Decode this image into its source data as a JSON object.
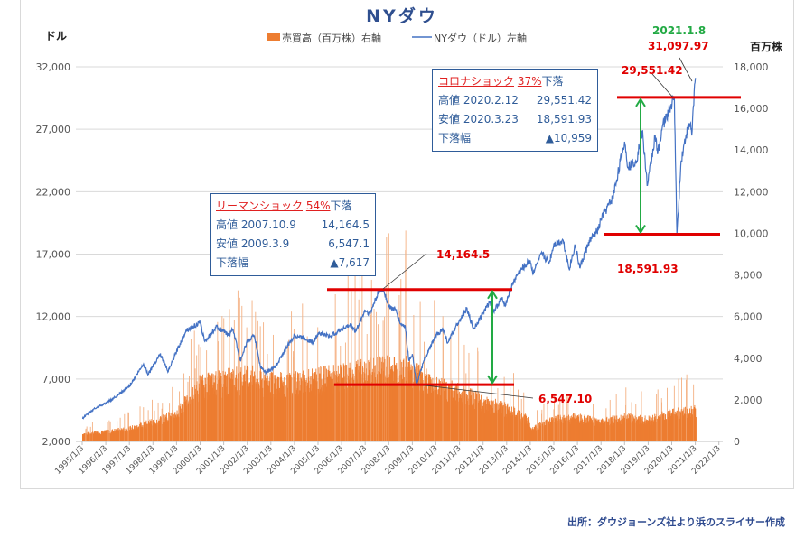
{
  "chart_data": {
    "type": "line+bar",
    "title": "NYダウ",
    "left_axis_unit": "ドル",
    "right_axis_unit": "百万株",
    "legend": [
      {
        "label": "売買高（百万株）右軸",
        "color": "#ed7d31",
        "kind": "bar"
      },
      {
        "label": "NYダウ（ドル）左軸",
        "color": "#4472c4",
        "kind": "line"
      }
    ],
    "legend_position": "top",
    "grid": true,
    "left_ylim": [
      2000,
      32000
    ],
    "left_ticks": [
      "2,000",
      "7,000",
      "12,000",
      "17,000",
      "22,000",
      "27,000",
      "32,000"
    ],
    "right_ylim": [
      0,
      18000
    ],
    "right_ticks": [
      "0",
      "2,000",
      "4,000",
      "6,000",
      "8,000",
      "10,000",
      "12,000",
      "14,000",
      "16,000",
      "18,000"
    ],
    "x_ticks": [
      "1995/1/3",
      "1996/1/3",
      "1997/1/3",
      "1998/1/3",
      "1999/1/3",
      "2000/1/3",
      "2001/1/3",
      "2002/1/3",
      "2003/1/3",
      "2004/1/3",
      "2005/1/3",
      "2006/1/3",
      "2007/1/3",
      "2008/1/3",
      "2009/1/3",
      "2010/1/3",
      "2011/1/3",
      "2012/1/3",
      "2013/1/3",
      "2014/1/3",
      "2015/1/3",
      "2016/1/3",
      "2017/1/3",
      "2018/1/3",
      "2019/1/3",
      "2020/1/3",
      "2021/1/3",
      "2022/1/3"
    ],
    "dow_series": [
      [
        1995.0,
        3840
      ],
      [
        1995.5,
        4600
      ],
      [
        1996.0,
        5100
      ],
      [
        1996.5,
        5650
      ],
      [
        1997.0,
        6450
      ],
      [
        1997.6,
        8200
      ],
      [
        1997.8,
        7400
      ],
      [
        1998.3,
        9000
      ],
      [
        1998.65,
        7600
      ],
      [
        1999.0,
        9200
      ],
      [
        1999.4,
        10900
      ],
      [
        2000.0,
        11500
      ],
      [
        2000.2,
        10000
      ],
      [
        2000.7,
        11200
      ],
      [
        2001.2,
        10500
      ],
      [
        2001.4,
        11000
      ],
      [
        2001.7,
        8500
      ],
      [
        2002.0,
        10000
      ],
      [
        2002.3,
        10500
      ],
      [
        2002.55,
        8000
      ],
      [
        2002.8,
        7500
      ],
      [
        2003.2,
        8000
      ],
      [
        2003.6,
        9300
      ],
      [
        2004.0,
        10500
      ],
      [
        2004.4,
        10300
      ],
      [
        2004.8,
        9900
      ],
      [
        2005.0,
        10700
      ],
      [
        2005.5,
        10400
      ],
      [
        2006.0,
        11000
      ],
      [
        2006.4,
        11300
      ],
      [
        2006.6,
        10800
      ],
      [
        2007.0,
        12500
      ],
      [
        2007.2,
        12200
      ],
      [
        2007.55,
        13900
      ],
      [
        2007.78,
        14164.5
      ],
      [
        2008.0,
        12800
      ],
      [
        2008.3,
        12500
      ],
      [
        2008.5,
        11400
      ],
      [
        2008.7,
        11200
      ],
      [
        2008.85,
        8500
      ],
      [
        2009.0,
        9000
      ],
      [
        2009.18,
        6547.1
      ],
      [
        2009.5,
        8500
      ],
      [
        2010.0,
        10500
      ],
      [
        2010.3,
        11000
      ],
      [
        2010.5,
        9900
      ],
      [
        2011.0,
        11700
      ],
      [
        2011.3,
        12600
      ],
      [
        2011.6,
        11000
      ],
      [
        2012.0,
        12300
      ],
      [
        2012.3,
        13200
      ],
      [
        2012.45,
        12400
      ],
      [
        2012.8,
        13500
      ],
      [
        2012.9,
        12800
      ],
      [
        2013.3,
        14800
      ],
      [
        2013.5,
        15500
      ],
      [
        2014.0,
        16500
      ],
      [
        2014.1,
        15500
      ],
      [
        2014.5,
        17000
      ],
      [
        2014.8,
        16300
      ],
      [
        2015.0,
        17800
      ],
      [
        2015.4,
        18100
      ],
      [
        2015.65,
        15800
      ],
      [
        2015.9,
        17700
      ],
      [
        2016.1,
        15900
      ],
      [
        2016.5,
        18000
      ],
      [
        2016.9,
        19000
      ],
      [
        2017.0,
        19800
      ],
      [
        2017.5,
        21500
      ],
      [
        2018.0,
        26000
      ],
      [
        2018.15,
        24000
      ],
      [
        2018.5,
        24500
      ],
      [
        2018.75,
        26800
      ],
      [
        2018.97,
        22500
      ],
      [
        2019.3,
        26500
      ],
      [
        2019.4,
        25000
      ],
      [
        2019.6,
        27200
      ],
      [
        2019.9,
        28500
      ],
      [
        2020.11,
        29551.42
      ],
      [
        2020.22,
        18591.93
      ],
      [
        2020.4,
        24500
      ],
      [
        2020.6,
        26500
      ],
      [
        2020.8,
        27500
      ],
      [
        2020.85,
        26500
      ],
      [
        2020.95,
        30000
      ],
      [
        2021.02,
        31097.97
      ]
    ],
    "volume_levels": [
      [
        1995.0,
        350
      ],
      [
        1996.0,
        450
      ],
      [
        1997.0,
        600
      ],
      [
        1998.0,
        900
      ],
      [
        1999.0,
        1300
      ],
      [
        2000.0,
        2600
      ],
      [
        2001.0,
        2800
      ],
      [
        2002.0,
        3000
      ],
      [
        2003.0,
        2700
      ],
      [
        2004.0,
        2700
      ],
      [
        2005.0,
        2900
      ],
      [
        2006.0,
        3000
      ],
      [
        2007.0,
        3200
      ],
      [
        2008.0,
        3400
      ],
      [
        2009.0,
        3300
      ],
      [
        2010.0,
        2500
      ],
      [
        2011.0,
        2300
      ],
      [
        2012.0,
        1800
      ],
      [
        2013.0,
        1500
      ],
      [
        2013.9,
        1000
      ],
      [
        2014.0,
        600
      ],
      [
        2015.0,
        1000
      ],
      [
        2016.0,
        1100
      ],
      [
        2017.0,
        900
      ],
      [
        2018.0,
        1100
      ],
      [
        2019.0,
        1000
      ],
      [
        2020.0,
        1300
      ],
      [
        2021.0,
        1400
      ]
    ],
    "annotations": {
      "lehman": {
        "title": "リーマンショック",
        "pct": "54%",
        "suffix": "下落",
        "high_label": "高値 2007.10.9",
        "high_value": "14,164.5",
        "low_label": "安値 2009.3.9",
        "low_value": "6,547.1",
        "drop_label": "下落幅",
        "drop_value": "▲7,617",
        "high_callout": "14,164.5",
        "low_callout": "6,547.10"
      },
      "corona": {
        "title": "コロナショック",
        "pct": "37%",
        "suffix": "下落",
        "high_label": "高値 2020.2.12",
        "high_value": "29,551.42",
        "low_label": "安値 2020.3.23",
        "low_value": "18,591.93",
        "drop_label": "下落幅",
        "drop_value": "▲10,959",
        "high_callout": "29,551.42",
        "low_callout": "18,591.93"
      },
      "latest_date": "2021.1.8",
      "latest_value": "31,097.97"
    }
  },
  "source": "出所：ダウジョーンズ社より浜のスライサー作成"
}
